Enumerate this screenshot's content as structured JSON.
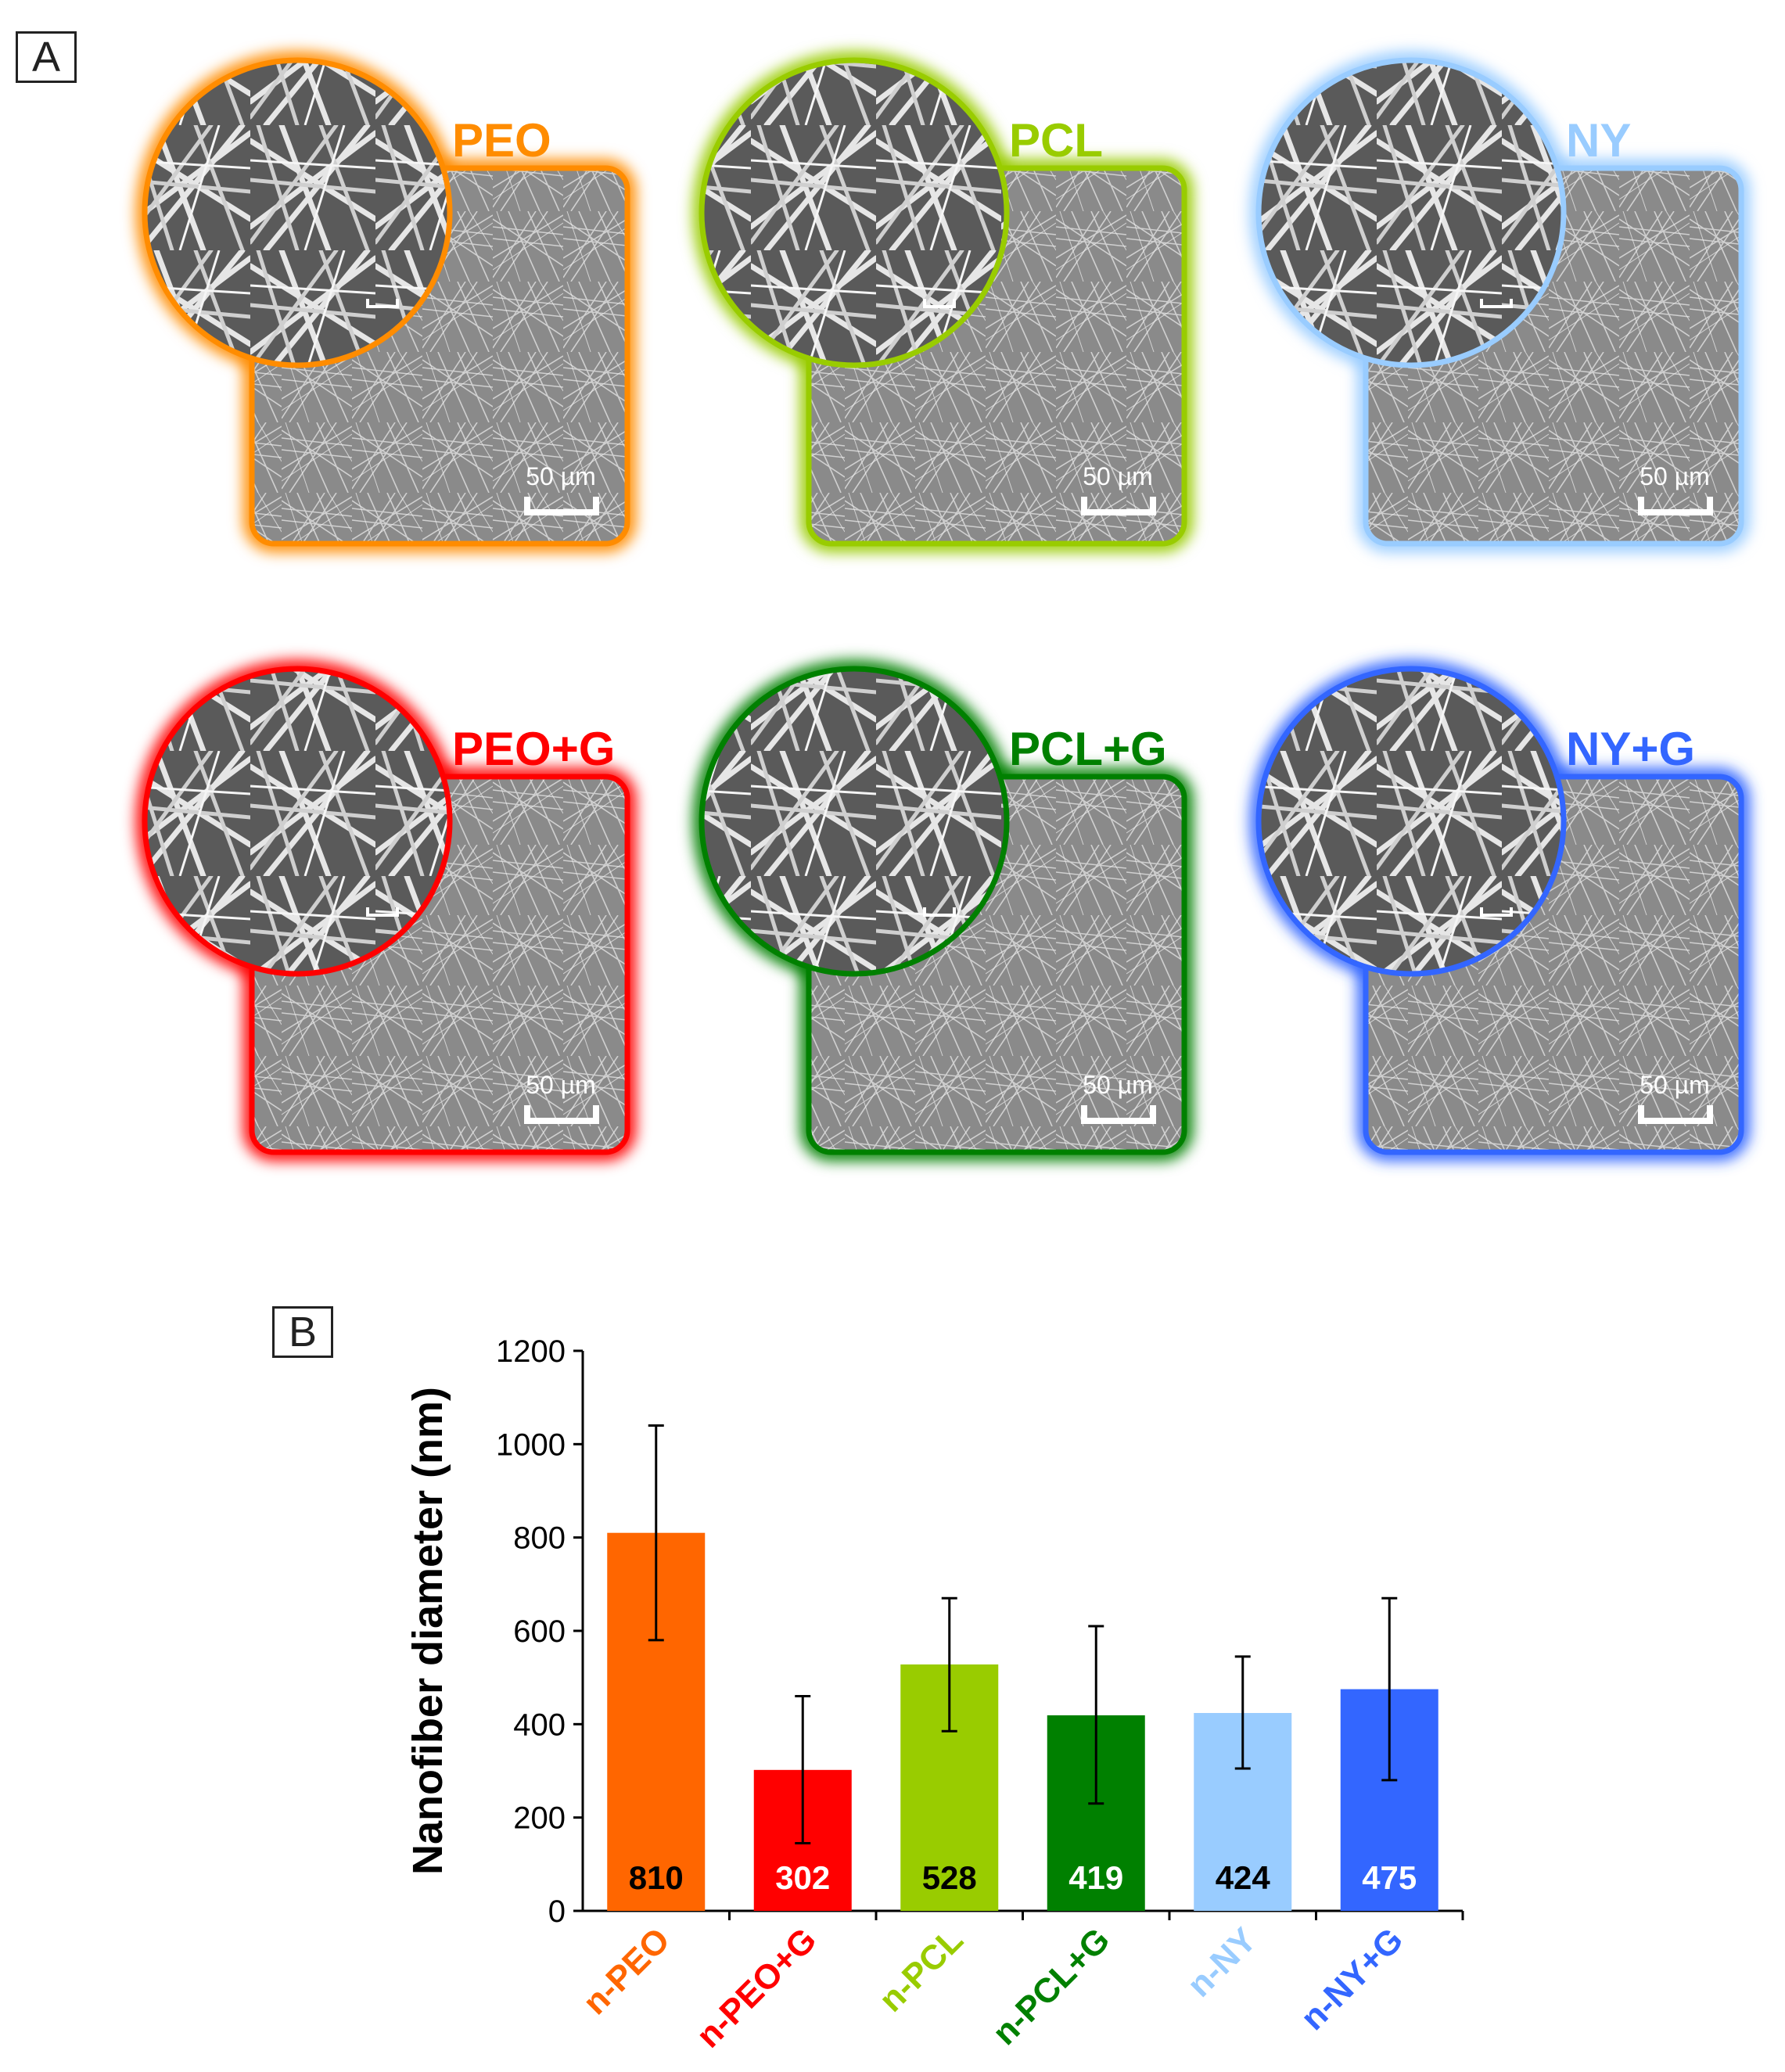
{
  "panel_a": {
    "label": "A",
    "tiles": [
      {
        "label": "PEO",
        "color": "#FF8C00",
        "scale": "50 µm"
      },
      {
        "label": "PCL",
        "color": "#99CC00",
        "scale": "50 µm"
      },
      {
        "label": "NY",
        "color": "#99CCFF",
        "scale": "50 µm"
      },
      {
        "label": "PEO+G",
        "color": "#FF0000",
        "scale": "50 µm"
      },
      {
        "label": "PCL+G",
        "color": "#008000",
        "scale": "50 µm"
      },
      {
        "label": "NY+G",
        "color": "#3366FF",
        "scale": "50 µm"
      }
    ]
  },
  "panel_b": {
    "label": "B"
  },
  "chart_data": {
    "type": "bar",
    "ylabel": "Nanofiber diameter (nm)",
    "ylim": [
      0,
      1200
    ],
    "yticks": [
      "0",
      "200",
      "400",
      "600",
      "800",
      "1000",
      "1200"
    ],
    "categories": [
      "n-PEO",
      "n-PEO+G",
      "n-PCL",
      "n-PCL+G",
      "n-NY",
      "n-NY+G"
    ],
    "values": [
      810,
      302,
      528,
      419,
      424,
      475
    ],
    "value_labels": [
      "810",
      "302",
      "528",
      "419",
      "424",
      "475"
    ],
    "error_low": [
      580,
      145,
      385,
      230,
      305,
      280
    ],
    "error_high": [
      1040,
      460,
      670,
      610,
      545,
      670
    ],
    "colors": [
      "#FF6600",
      "#FF0000",
      "#99CC00",
      "#008000",
      "#99CCFF",
      "#3366FF"
    ],
    "label_text_colors": [
      "#000000",
      "#FFFFFF",
      "#000000",
      "#FFFFFF",
      "#000000",
      "#FFFFFF"
    ],
    "grid": false
  }
}
